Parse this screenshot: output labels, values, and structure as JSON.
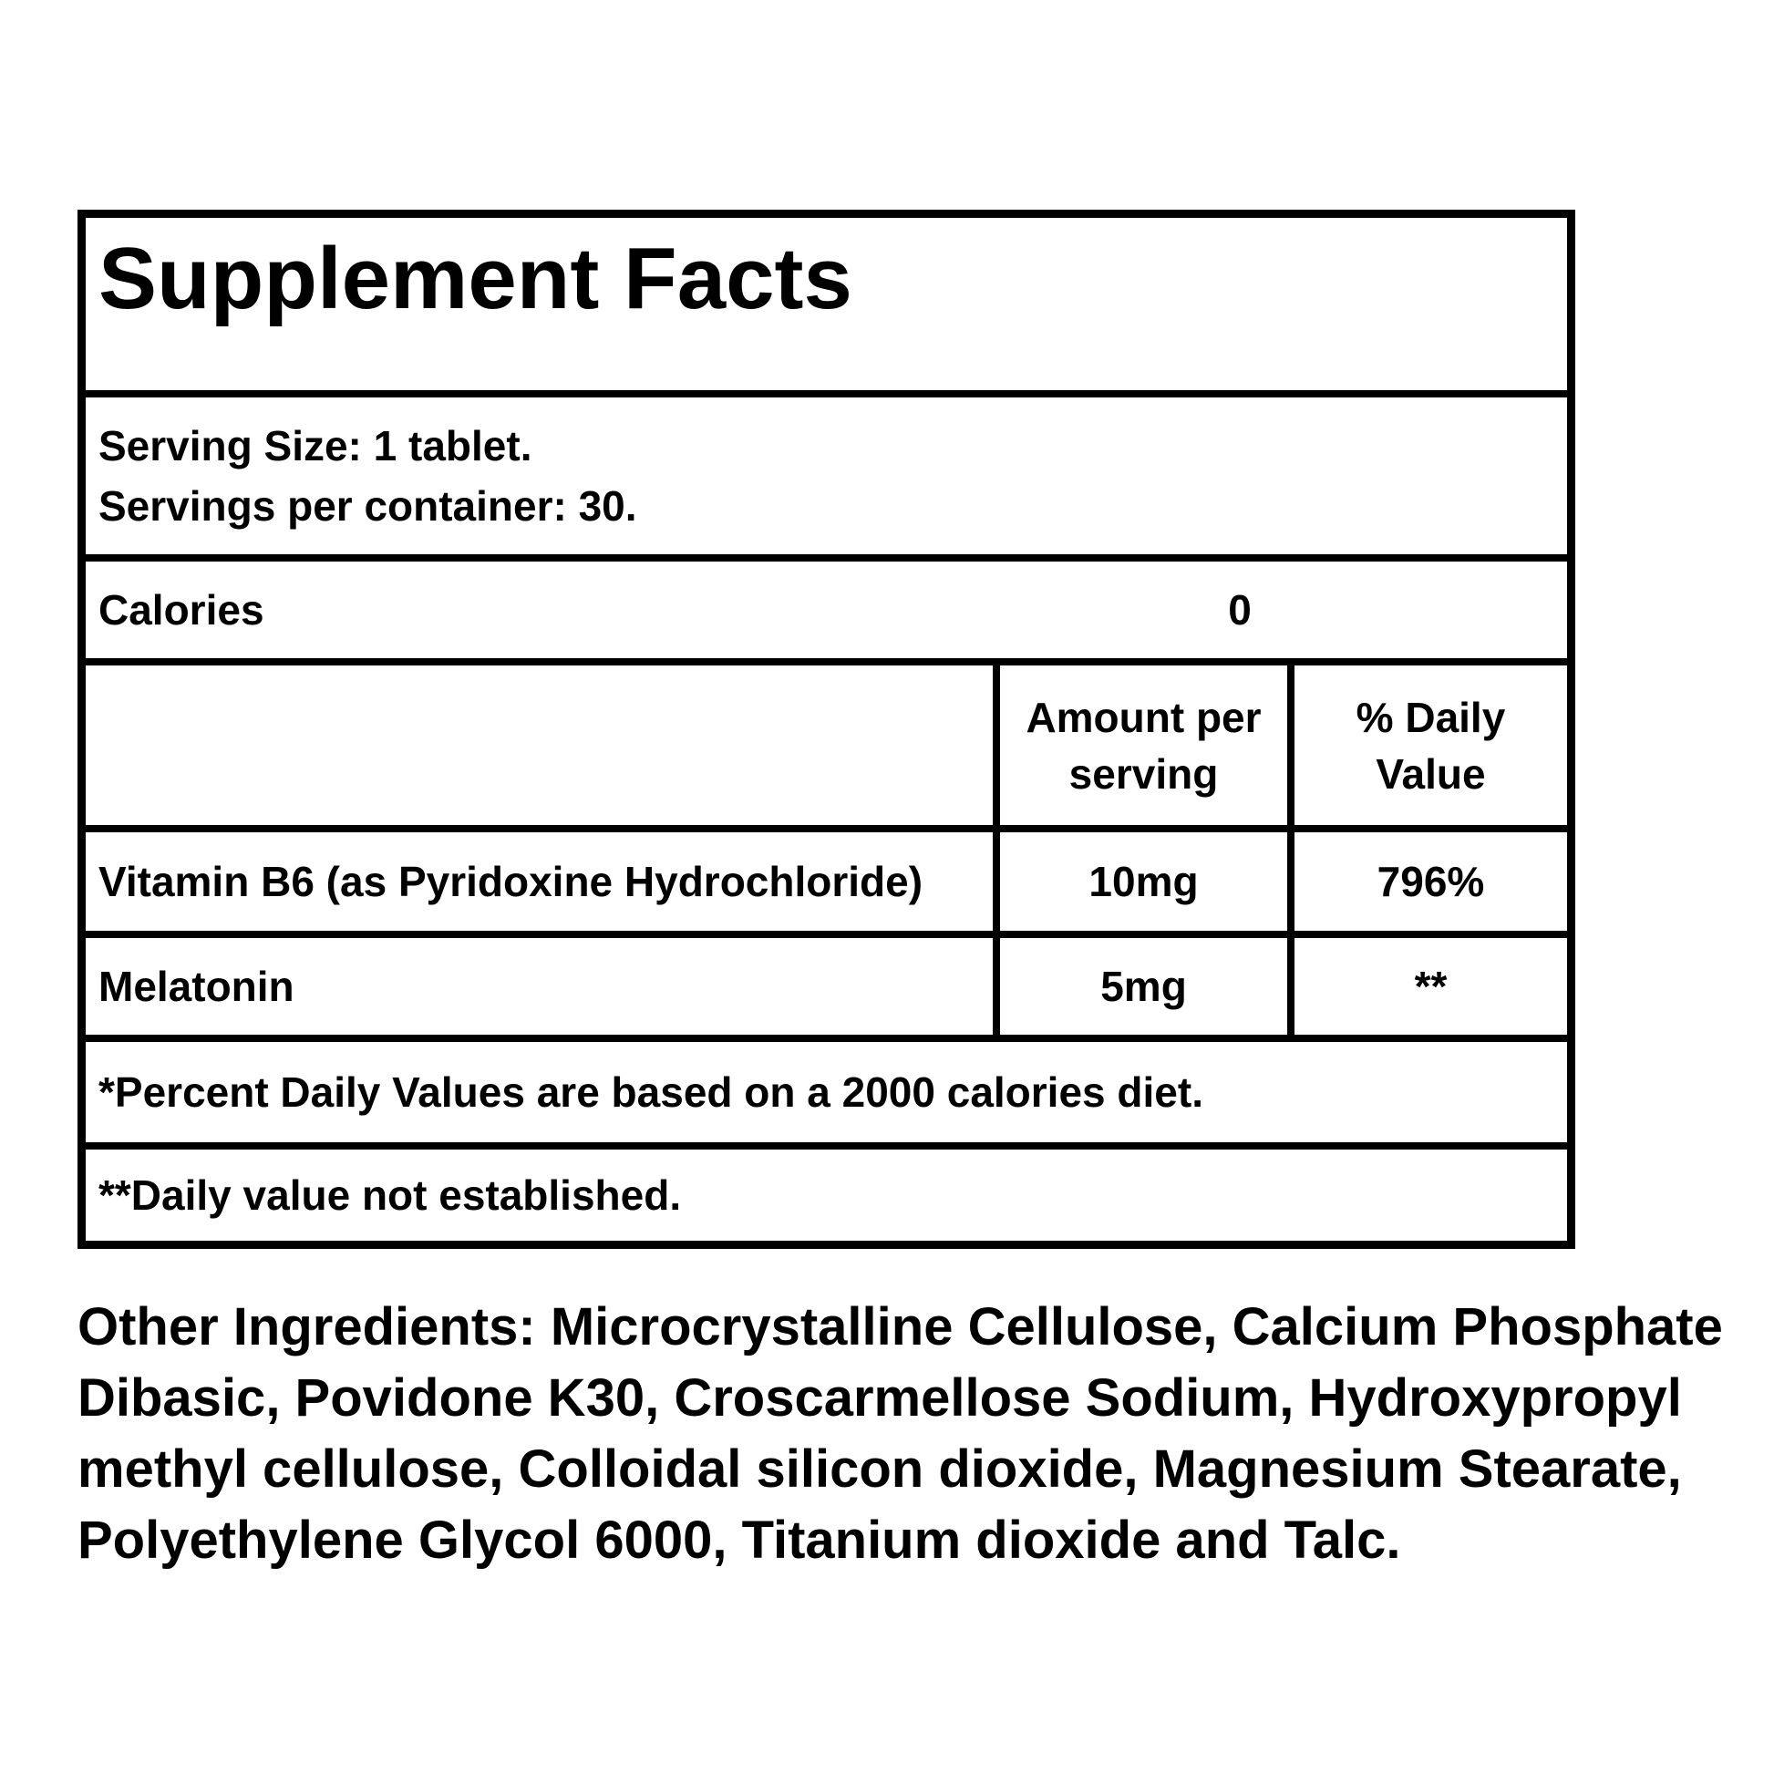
{
  "label": {
    "title": "Supplement Facts",
    "serving_size": "Serving Size: 1 tablet.",
    "servings_per_container": "Servings per container: 30.",
    "calories": {
      "label": "Calories",
      "value": "0"
    },
    "columns": {
      "amount": "Amount per serving",
      "daily_value": "% Daily Value"
    },
    "nutrients": [
      {
        "name": "Vitamin B6 (as Pyridoxine Hydrochloride)",
        "amount": "10mg",
        "daily_value": "796%"
      },
      {
        "name": "Melatonin",
        "amount": "5mg",
        "daily_value": "**"
      }
    ],
    "footnotes": [
      "*Percent Daily Values are based on a 2000 calories diet.",
      "**Daily value not established."
    ],
    "other_ingredients": "Other Ingredients: Microcrystalline Cellulose, Calcium Phosphate Dibasic, Povidone K30, Croscarmellose Sodium, Hydroxypropyl methyl cellulose, Colloidal silicon dioxide, Magnesium Stearate, Polyethylene Glycol 6000, Titanium dioxide and Talc.",
    "colors": {
      "text": "#000000",
      "background": "#ffffff",
      "border": "#000000"
    }
  }
}
